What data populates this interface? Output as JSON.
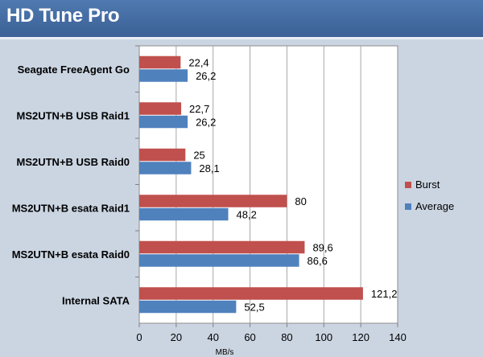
{
  "header": {
    "title": "HD Tune Pro"
  },
  "colors": {
    "burst": "#c0504d",
    "average": "#4f81bd",
    "plot_bg": "#ffffff",
    "grid": "#a6a6a6"
  },
  "chart_data": {
    "type": "bar",
    "orientation": "horizontal",
    "title": "HD Tune Pro",
    "xlabel": "MB/s",
    "ylabel": "",
    "xlim": [
      0,
      140
    ],
    "x_ticks": [
      0,
      20,
      40,
      60,
      80,
      100,
      120,
      140
    ],
    "grid": true,
    "legend_position": "right",
    "categories": [
      "Seagate FreeAgent Go",
      "MS2UTN+B USB Raid1",
      "MS2UTN+B USB Raid0",
      "MS2UTN+B esata Raid1",
      "MS2UTN+B esata Raid0",
      "Internal SATA"
    ],
    "series": [
      {
        "name": "Burst",
        "color": "#c0504d",
        "values": [
          22.4,
          22.7,
          25,
          80,
          89.6,
          121.2
        ],
        "labels": [
          "22,4",
          "22,7",
          "25",
          "80",
          "89,6",
          "121,2"
        ]
      },
      {
        "name": "Average",
        "color": "#4f81bd",
        "values": [
          26.2,
          26.2,
          28.1,
          48.2,
          86.6,
          52.5
        ],
        "labels": [
          "26,2",
          "26,2",
          "28,1",
          "48,2",
          "86,6",
          "52,5"
        ]
      }
    ]
  }
}
